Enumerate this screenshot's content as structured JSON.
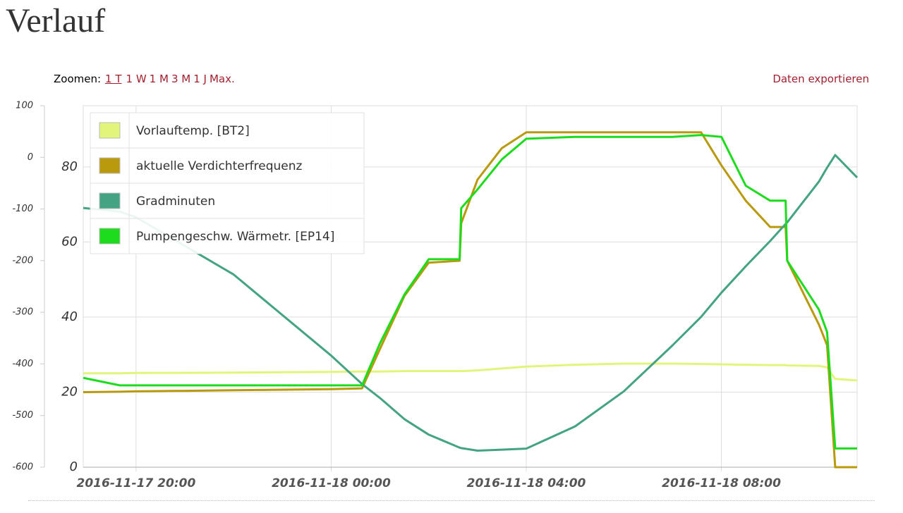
{
  "page": {
    "title": "Verlauf",
    "zoom_label": "Zoomen:",
    "zoom_options": [
      "1 T",
      "1 W",
      "1 M",
      "3 M",
      "1 J",
      "Max."
    ],
    "export": "Daten exportieren"
  },
  "chart_data": {
    "type": "line",
    "x": [
      "2016-11-17 18:55",
      "2016-11-17 19:40",
      "2016-11-17 20:00",
      "2016-11-17 22:00",
      "2016-11-18 00:00",
      "2016-11-18 00:38",
      "2016-11-18 01:00",
      "2016-11-18 01:30",
      "2016-11-18 02:00",
      "2016-11-18 02:38",
      "2016-11-18 02:40",
      "2016-11-18 03:00",
      "2016-11-18 03:30",
      "2016-11-18 04:00",
      "2016-11-18 05:00",
      "2016-11-18 06:00",
      "2016-11-18 07:00",
      "2016-11-18 07:35",
      "2016-11-18 08:00",
      "2016-11-18 08:30",
      "2016-11-18 09:00",
      "2016-11-18 09:19",
      "2016-11-18 09:21",
      "2016-11-18 10:00",
      "2016-11-18 10:10",
      "2016-11-18 10:20",
      "2016-11-18 10:47"
    ],
    "xlim": [
      "2016-11-17 18:55",
      "2016-11-18 10:47"
    ],
    "xticks": [
      "2016-11-17 20:00",
      "2016-11-18 00:00",
      "2016-11-18 04:00",
      "2016-11-18 08:00"
    ],
    "ylim": [
      0,
      96.3
    ],
    "yticks": [
      0,
      20,
      40,
      60,
      80
    ],
    "y2lim": [
      -600,
      100
    ],
    "y2ticks": [
      100,
      0,
      -100,
      -200,
      -300,
      -400,
      -500,
      -600
    ],
    "grid": true,
    "legend": "upper left",
    "series": [
      {
        "name": "Vorlauftemp. [BT2]",
        "color": "#e3f47a",
        "values": [
          25.0,
          25.0,
          25.1,
          25.2,
          25.4,
          25.5,
          25.5,
          25.6,
          25.6,
          25.6,
          25.6,
          25.8,
          26.3,
          26.8,
          27.3,
          27.6,
          27.6,
          27.5,
          27.4,
          27.3,
          27.2,
          27.2,
          27.1,
          27.0,
          26.6,
          23.5,
          23.1
        ]
      },
      {
        "name": "aktuelle Verdichterfrequenz",
        "color": "#b89a0c",
        "values": [
          20.0,
          20.1,
          20.2,
          20.5,
          20.8,
          21.0,
          31.5,
          45.6,
          54.5,
          55.0,
          65.0,
          76.6,
          85.0,
          89.2,
          89.2,
          89.2,
          89.2,
          89.2,
          80.4,
          71.0,
          64.0,
          64.0,
          55.0,
          38.0,
          32.5,
          0,
          0
        ]
      },
      {
        "name": "Gradminuten",
        "color": "#43a383",
        "axis": "y2",
        "values": [
          -98,
          -105,
          -116,
          -227,
          -384,
          -439,
          -466,
          -507,
          -537,
          -562,
          -563,
          -568,
          -566,
          -564,
          -521,
          -453,
          -364,
          -309,
          -262,
          -211,
          -162,
          -129,
          -126,
          -47,
          -20,
          4.5,
          -39
        ]
      },
      {
        "name": "Pumpengeschw. Wärmetr. [EP14]",
        "color": "#1ddc1d",
        "values": [
          23.8,
          21.8,
          21.8,
          21.8,
          21.8,
          21.8,
          33.0,
          46.0,
          55.4,
          55.4,
          69.0,
          74.0,
          82.0,
          87.5,
          88.0,
          88.0,
          88.0,
          88.5,
          88.0,
          75.0,
          71.0,
          71.0,
          55.0,
          42.0,
          36.0,
          5.0,
          5.0
        ]
      }
    ]
  }
}
